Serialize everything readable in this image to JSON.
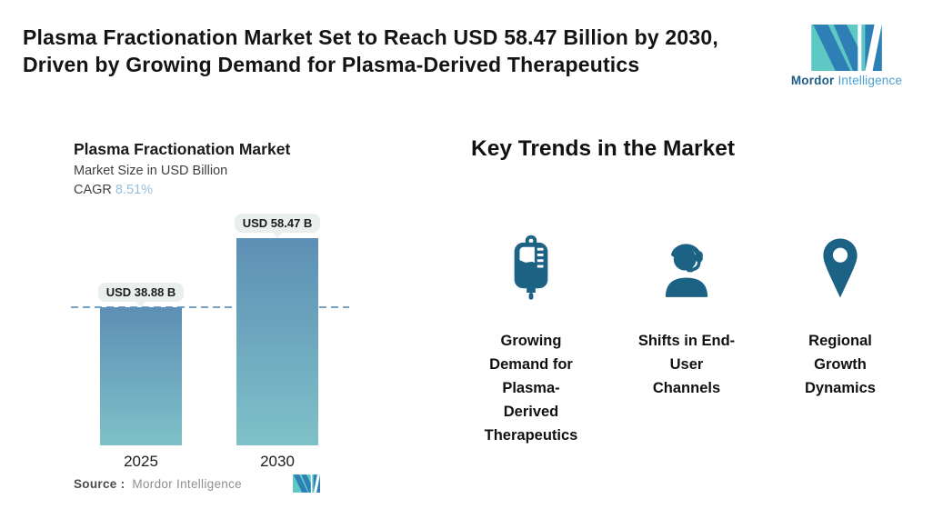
{
  "header": {
    "title_lines": [
      "Plasma Fractionation Market Set to Reach USD 58.47 Billion by 2030,",
      "Driven by Growing Demand for Plasma-Derived Therapeutics"
    ],
    "brand": {
      "name_bold": "Mordor",
      "name_light": "Intelligence"
    }
  },
  "chart": {
    "source_label": "Source :",
    "source_value": "Mordor Intelligence"
  },
  "chart_data": {
    "type": "bar",
    "title": "Plasma Fractionation Market",
    "ylabel": "Market Size in USD Billion",
    "cagr_label": "CAGR",
    "cagr_value": "8.51%",
    "categories": [
      "2025",
      "2030"
    ],
    "values": [
      38.88,
      58.47
    ],
    "value_labels": [
      "USD 38.88 B",
      "USD 58.47 B"
    ],
    "reference_line": {
      "at_value": 38.88,
      "style": "dashed"
    },
    "legend": "none",
    "grid": false,
    "colors": {
      "bar_gradient_top": "#5d8fb5",
      "bar_gradient_bottom": "#7fc1c8",
      "dashed_line": "#74a2c8",
      "label_pill_bg": "#e9efec",
      "cagr_value_text": "#97bdda"
    }
  },
  "trends": {
    "heading": "Key Trends in the Market",
    "items": [
      {
        "icon": "iv-bag-icon",
        "label_lines": [
          "Growing",
          "Demand for",
          "Plasma-",
          "Derived",
          "Therapeutics"
        ]
      },
      {
        "icon": "headset-agent-icon",
        "label_lines": [
          "Shifts in End-",
          "User",
          "Channels"
        ]
      },
      {
        "icon": "map-pin-icon",
        "label_lines": [
          "Regional",
          "Growth",
          "Dynamics"
        ]
      }
    ]
  },
  "icon_color": "#1b6284",
  "logo_colors": {
    "teal": "#5ec8c4",
    "blue": "#2e7fb5"
  }
}
